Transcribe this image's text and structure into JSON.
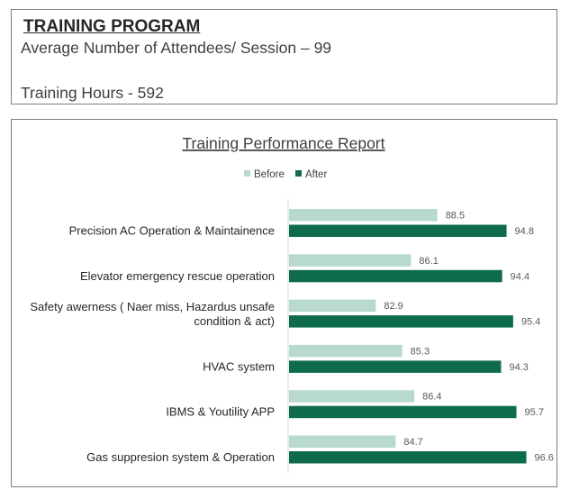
{
  "header": {
    "title": "TRAINING PROGRAM",
    "attendees": "Average Number of Attendees/ Session – 99",
    "hours": "Training Hours - 592"
  },
  "colors": {
    "before": "#b7d9ce",
    "after": "#0e6b4d",
    "axis": "#d9d9d9"
  },
  "chart_data": {
    "type": "bar",
    "orientation": "horizontal",
    "title": "Training Performance Report",
    "legend_position": "top",
    "grid": false,
    "categories": [
      [
        "Precision AC Operation & Maintainence"
      ],
      [
        "Elevator emergency rescue operation"
      ],
      [
        "Safety awerness ( Naer miss, Hazardus unsafe",
        "condition & act)"
      ],
      [
        "HVAC system"
      ],
      [
        "IBMS & Youtility APP"
      ],
      [
        "Gas suppresion system & Operation"
      ]
    ],
    "series": [
      {
        "name": "Before",
        "values": [
          88.5,
          86.1,
          82.9,
          85.3,
          86.4,
          84.7
        ]
      },
      {
        "name": "After",
        "values": [
          94.8,
          94.4,
          95.4,
          94.3,
          95.7,
          96.6
        ]
      }
    ],
    "xlim": [
      75,
      100
    ]
  }
}
